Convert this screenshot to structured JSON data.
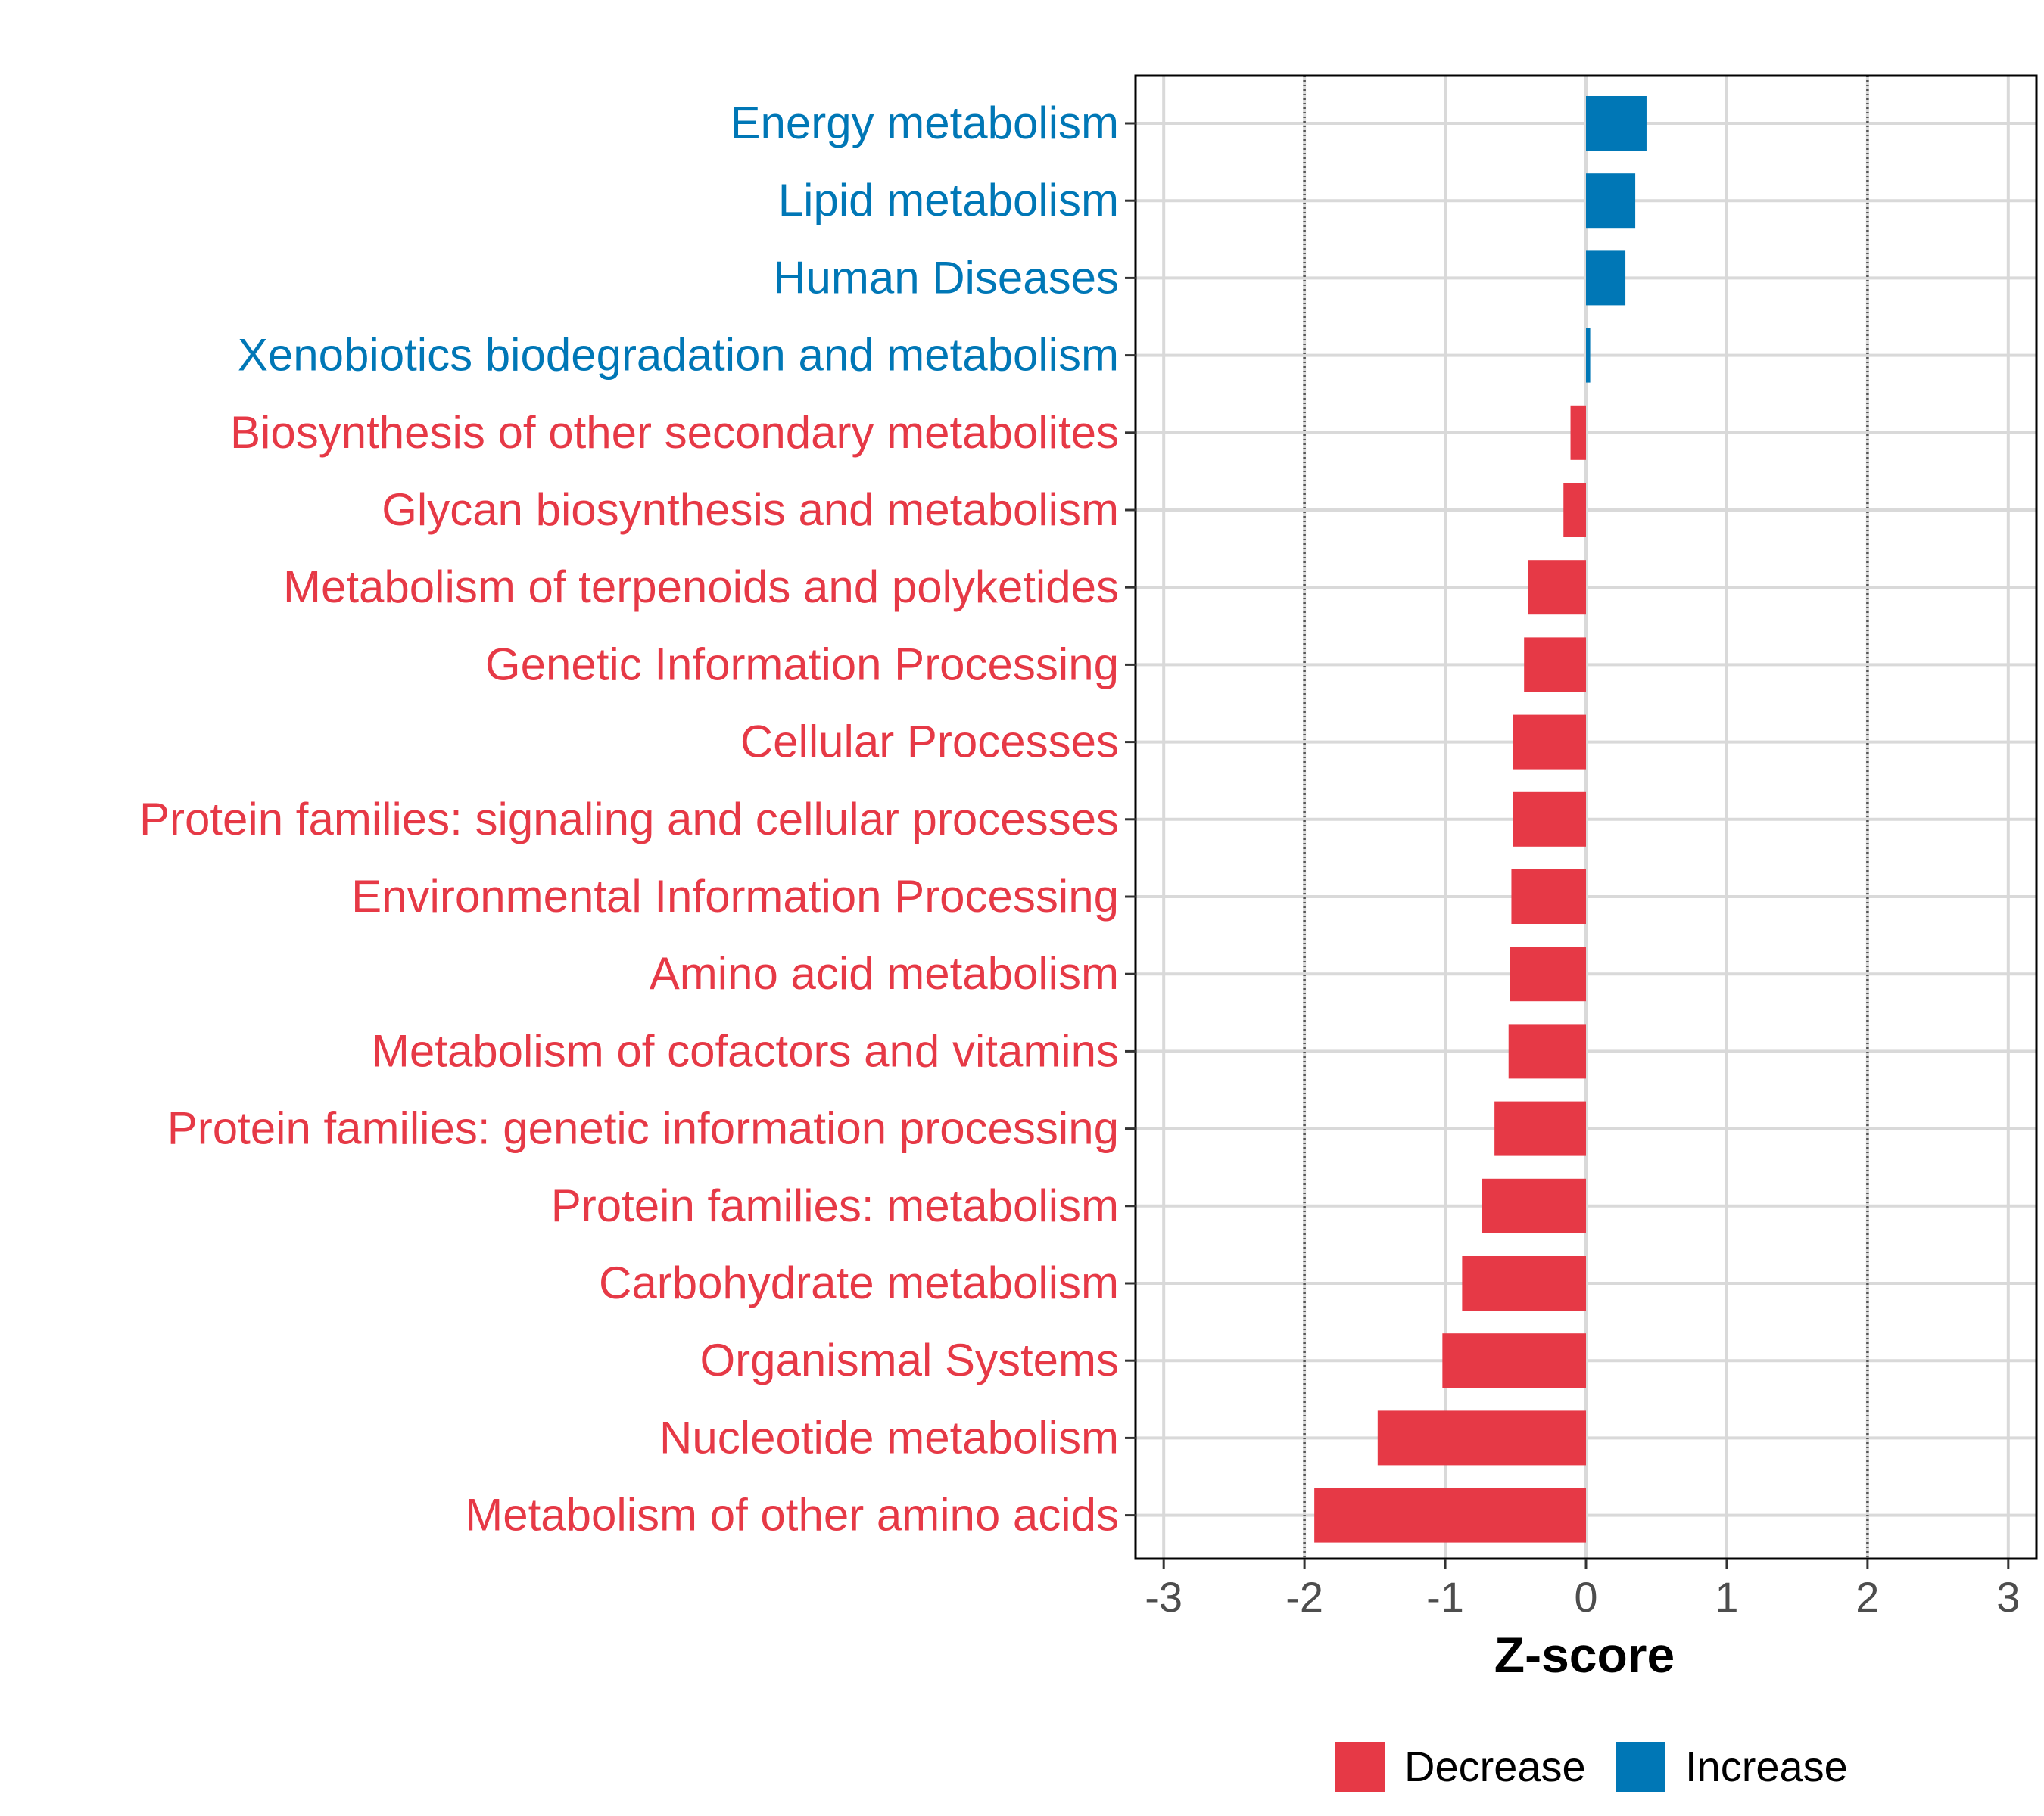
{
  "chart_data": {
    "type": "bar",
    "orientation": "horizontal",
    "title": "",
    "xlabel": "Z-score",
    "ylabel": "",
    "xlim": [
      -3.2,
      3.2
    ],
    "xticks": [
      -3,
      -2,
      -1,
      0,
      1,
      2,
      3
    ],
    "reference_lines": [
      -2,
      2
    ],
    "grid": true,
    "categories": [
      "Energy metabolism",
      "Lipid metabolism",
      "Human Diseases",
      "Xenobiotics biodegradation and metabolism",
      "Biosynthesis of other secondary metabolites",
      "Glycan biosynthesis and metabolism",
      "Metabolism of terpenoids and polyketides",
      "Genetic Information Processing",
      "Cellular Processes",
      "Protein families: signaling and cellular processes",
      "Environmental Information Processing",
      "Amino acid metabolism",
      "Metabolism of cofactors and vitamins",
      "Protein families: genetic information processing",
      "Protein families: metabolism",
      "Carbohydrate metabolism",
      "Organismal Systems",
      "Nucleotide metabolism",
      "Metabolism of other amino acids"
    ],
    "values": [
      0.43,
      0.35,
      0.28,
      0.03,
      -0.11,
      -0.16,
      -0.41,
      -0.44,
      -0.52,
      -0.52,
      -0.53,
      -0.54,
      -0.55,
      -0.65,
      -0.74,
      -0.88,
      -1.02,
      -1.48,
      -1.93
    ],
    "legend": {
      "position": "bottom",
      "entries": [
        {
          "name": "Decrease",
          "color": "#E63946"
        },
        {
          "name": "Increase",
          "color": "#0077B6"
        }
      ]
    }
  },
  "colors": {
    "decrease": "#E63946",
    "increase": "#0077B6",
    "grid": "#D9D9D9",
    "reference_line": "#555555",
    "panel_border": "#000000"
  }
}
